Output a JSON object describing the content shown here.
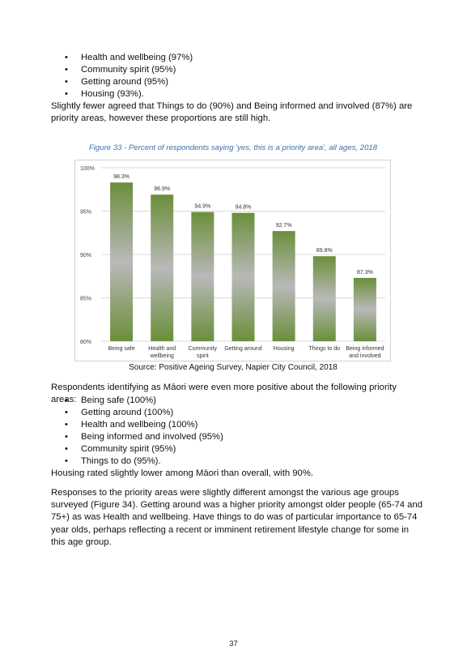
{
  "top_bullets": [
    "Health and wellbeing (97%)",
    "Community spirit (95%)",
    "Getting around (95%)",
    "Housing (93%)."
  ],
  "para1": "Slightly fewer agreed that Things to do (90%) and Being informed and involved (87%) are priority areas, however these proportions are still high.",
  "figure_caption": "Figure 33 - Percent of respondents saying 'yes, this is a priority area', all ages, 2018",
  "chart_data": {
    "type": "bar",
    "categories": [
      [
        "Being safe"
      ],
      [
        "Health and",
        "wellbeing"
      ],
      [
        "Community",
        "spirit"
      ],
      [
        "Getting around"
      ],
      [
        "Housing"
      ],
      [
        "Things to do"
      ],
      [
        "Being informed",
        "and involved"
      ]
    ],
    "values": [
      98.3,
      96.9,
      94.9,
      94.8,
      92.7,
      89.8,
      87.3
    ],
    "value_labels": [
      "98.3%",
      "96.9%",
      "94.9%",
      "94.8%",
      "92.7%",
      "89.8%",
      "87.3%"
    ],
    "y_ticks": [
      80,
      85,
      90,
      95,
      100
    ],
    "y_tick_labels": [
      "80%",
      "85%",
      "90%",
      "95%",
      "100%"
    ],
    "ylim": [
      80,
      100
    ],
    "grid": true,
    "bar_color_dark": "#6a8f3a",
    "bar_color_mid": "#b9b9b9"
  },
  "source": "Source: Positive Ageing Survey, Napier City Council, 2018",
  "para2": "Respondents identifying as Māori were even more positive about the following priority areas:",
  "maori_bullets": [
    "Being safe (100%)",
    "Getting around (100%)",
    "Health and wellbeing (100%)",
    "Being informed and involved (95%)",
    "Community spirit (95%)",
    "Things to do (95%)."
  ],
  "para3": "Housing rated slightly lower among Māori than overall, with 90%.",
  "para4": "Responses to the priority areas were slightly different amongst the various age groups surveyed (Figure 34). Getting around was a higher priority amongst older people (65-74 and 75+) as was Health and wellbeing. Have things to do was of particular importance to 65-74 year olds, perhaps reflecting a recent or imminent retirement lifestyle change for some in this age group.",
  "page_number": "37"
}
